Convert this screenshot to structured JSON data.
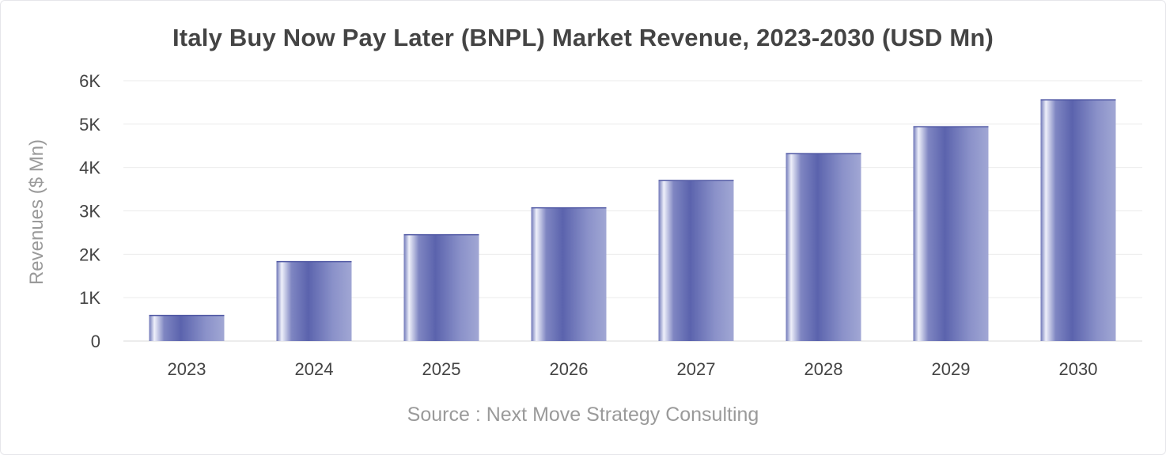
{
  "chart_data": {
    "type": "bar",
    "title": "Italy Buy Now Pay Later (BNPL) Market Revenue, 2023-2030 (USD Mn)",
    "xlabel": "",
    "ylabel": "Revenues ($ Mn)",
    "categories": [
      "2023",
      "2024",
      "2025",
      "2026",
      "2027",
      "2028",
      "2029",
      "2030"
    ],
    "values": [
      600,
      1840,
      2460,
      3080,
      3710,
      4330,
      4950,
      5570
    ],
    "ylim": [
      0,
      6000
    ],
    "yticks": [
      {
        "value": 0,
        "label": "0"
      },
      {
        "value": 1000,
        "label": "1K"
      },
      {
        "value": 2000,
        "label": "2K"
      },
      {
        "value": 3000,
        "label": "3K"
      },
      {
        "value": 4000,
        "label": "4K"
      },
      {
        "value": 5000,
        "label": "5K"
      },
      {
        "value": 6000,
        "label": "6K"
      }
    ],
    "grid": true,
    "legend": "none",
    "bar_color": "#5b63ad",
    "bar_highlight": "#eef0fa",
    "source": "Source : Next Move Strategy Consulting"
  }
}
